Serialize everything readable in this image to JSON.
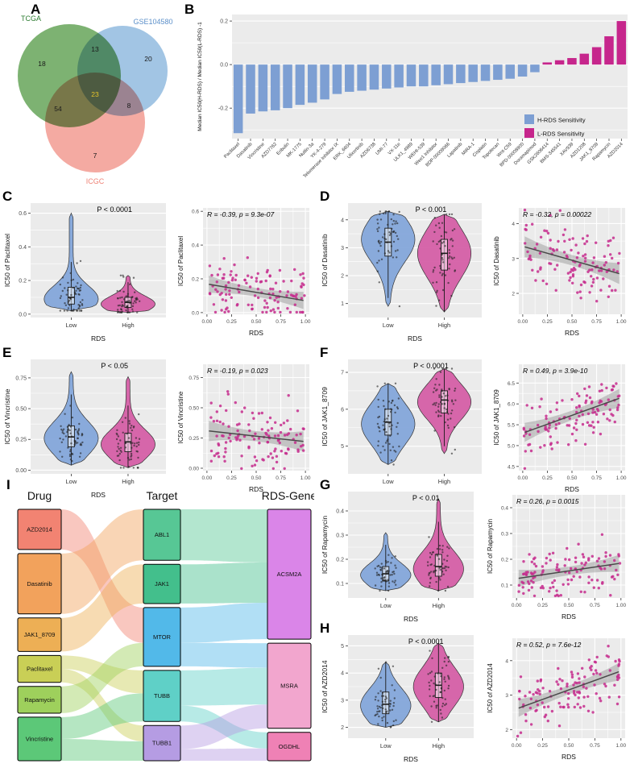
{
  "chart_data": [
    {
      "type": "venn",
      "panel": "A",
      "sets": [
        {
          "name": "TCGA",
          "color": "#66A559",
          "label_color": "#2e7d32"
        },
        {
          "name": "GSE104580",
          "color": "#92BBDF",
          "label_color": "#5b8fc9"
        },
        {
          "name": "ICGC",
          "color": "#F29B92",
          "label_color": "#ef8377"
        }
      ],
      "regions": [
        {
          "label": "TCGA only",
          "value": 18,
          "highlight": false
        },
        {
          "label": "TCGA and GSE104580",
          "value": 13,
          "highlight": false
        },
        {
          "label": "GSE104580 only",
          "value": 20,
          "highlight": false
        },
        {
          "label": "TCGA and ICGC",
          "value": 54,
          "highlight": false
        },
        {
          "label": "all three",
          "value": 23,
          "highlight": true
        },
        {
          "label": "GSE104580 and ICGC",
          "value": 8,
          "highlight": false
        },
        {
          "label": "ICGC only",
          "value": 7,
          "highlight": false
        }
      ]
    },
    {
      "type": "bar",
      "panel": "B",
      "ylabel": "Median IC50(H-RDS) / Median IC50(L-RDS) -1",
      "ylim": [
        -0.34,
        0.23
      ],
      "yticks": [
        "0.2",
        "0.0",
        "-0.2"
      ],
      "minor_ticks": [
        0.1,
        -0.1,
        -0.3
      ],
      "legend": [
        {
          "label": "H-RDS Sensitivity",
          "color": "#7D9FD3"
        },
        {
          "label": "L-RDS Sensitivity",
          "color": "#C6268C"
        }
      ],
      "categories": [
        "Paclitaxel",
        "Dasatinib",
        "Vincristine",
        "AZD7762",
        "Eribulin",
        "MK-1775",
        "Nutlin-3a",
        "YK-4-279",
        "Telomerase Inhibitor IX",
        "ERK_6604",
        "Ulixertinib",
        "AZD6738",
        "UMI-77",
        "VX-11e",
        "ULK1_4989",
        "WEHI-539",
        "Wee1 Inhibitor",
        "BDP-00009066",
        "Lapatinib",
        "MIRA-1",
        "Cisplatin",
        "Topotecan",
        "Wnt-C59",
        "BPD-00008900",
        "Doramapimod",
        "GSK2606414",
        "BMS-345541",
        "XAV939",
        "AZD1208",
        "JAK1_8709",
        "Rapamycin",
        "AZD2014"
      ],
      "values": [
        -0.315,
        -0.225,
        -0.215,
        -0.21,
        -0.2,
        -0.185,
        -0.175,
        -0.16,
        -0.135,
        -0.125,
        -0.12,
        -0.115,
        -0.11,
        -0.105,
        -0.1,
        -0.1,
        -0.095,
        -0.09,
        -0.085,
        -0.08,
        -0.075,
        -0.07,
        -0.065,
        -0.055,
        -0.035,
        0.01,
        0.02,
        0.03,
        0.05,
        0.08,
        0.13,
        0.2
      ]
    },
    {
      "type": "violin+scatter",
      "panel": "C",
      "drug": "Paclitaxel",
      "p_label": "P < 0.0001",
      "ylabel": "IC50 of Paclitaxel",
      "xlabel": "RDS",
      "violin_yticks": [
        "0.0",
        "0.2",
        "0.4",
        "0.6"
      ],
      "violin_ylim": [
        -0.02,
        0.66
      ],
      "violin_groups": [
        {
          "label": "Low",
          "color": "#84A7DA",
          "min": 0.02,
          "max": 0.6,
          "mode": 0.09,
          "q1": 0.06,
          "median": 0.1,
          "q3": 0.16,
          "spread": 0.07,
          "n": 60
        },
        {
          "label": "High",
          "color": "#D55FA6",
          "min": 0.01,
          "max": 0.23,
          "mode": 0.06,
          "q1": 0.04,
          "median": 0.07,
          "q3": 0.1,
          "spread": 0.045,
          "n": 60
        }
      ],
      "scatter": {
        "annotation": "R = -0.39, p = 9.3e-07",
        "R": -0.39,
        "p": "9.3e-07",
        "xticks": [
          "0.00",
          "0.25",
          "0.50",
          "0.75",
          "1.00"
        ],
        "yticks": [
          "0.0",
          "0.2",
          "0.4",
          "0.6"
        ],
        "ylim": [
          -0.01,
          0.62
        ],
        "n": 120,
        "line": [
          0.17,
          0.07
        ],
        "noise": 0.085
      }
    },
    {
      "type": "violin+scatter",
      "panel": "D",
      "drug": "Dasatinib",
      "p_label": "P < 0.001",
      "ylabel": "IC50 of Dasatinib",
      "xlabel": "RDS",
      "violin_yticks": [
        "1",
        "2",
        "3",
        "4"
      ],
      "violin_ylim": [
        0.5,
        4.6
      ],
      "violin_groups": [
        {
          "label": "Low",
          "color": "#84A7DA",
          "min": 0.9,
          "max": 4.3,
          "mode": 3.3,
          "q1": 2.7,
          "median": 3.2,
          "q3": 3.7,
          "spread": 0.55,
          "n": 60
        },
        {
          "label": "High",
          "color": "#D55FA6",
          "min": 0.7,
          "max": 4.2,
          "mode": 2.8,
          "q1": 2.2,
          "median": 2.8,
          "q3": 3.3,
          "spread": 0.65,
          "n": 60
        }
      ],
      "scatter": {
        "annotation": "R = -0.32, p = 0.00022",
        "R": -0.32,
        "p": "0.00022",
        "xticks": [
          "0.00",
          "0.25",
          "0.50",
          "0.75",
          "1.00"
        ],
        "yticks": [
          "2",
          "3",
          "4"
        ],
        "ylim": [
          1.4,
          4.45
        ],
        "n": 120,
        "line": [
          3.35,
          2.55
        ],
        "noise": 0.5
      }
    },
    {
      "type": "violin+scatter",
      "panel": "E",
      "drug": "Vincristine",
      "p_label": "P < 0.05",
      "ylabel": "IC50 of Vincristine",
      "xlabel": "RDS",
      "violin_yticks": [
        "0.00",
        "0.25",
        "0.50",
        "0.75"
      ],
      "violin_ylim": [
        -0.03,
        0.9
      ],
      "violin_groups": [
        {
          "label": "Low",
          "color": "#84A7DA",
          "min": 0.04,
          "max": 0.8,
          "mode": 0.26,
          "q1": 0.19,
          "median": 0.27,
          "q3": 0.36,
          "spread": 0.1,
          "n": 60
        },
        {
          "label": "High",
          "color": "#D55FA6",
          "min": 0.02,
          "max": 0.76,
          "mode": 0.21,
          "q1": 0.15,
          "median": 0.23,
          "q3": 0.3,
          "spread": 0.1,
          "n": 60
        }
      ],
      "scatter": {
        "annotation": "R = -0.19, p = 0.023",
        "R": -0.19,
        "p": "0.023",
        "xticks": [
          "0.00",
          "0.25",
          "0.50",
          "0.75",
          "1.00"
        ],
        "yticks": [
          "0.00",
          "0.25",
          "0.50",
          "0.75"
        ],
        "ylim": [
          -0.02,
          0.86
        ],
        "n": 120,
        "line": [
          0.31,
          0.22
        ],
        "noise": 0.14
      }
    },
    {
      "type": "violin+scatter",
      "panel": "F",
      "drug": "JAK1_8709",
      "p_label": "P < 0.0001",
      "ylabel": "IC50 of JAK1_8709",
      "xlabel": "RDS",
      "violin_yticks": [
        "5",
        "6",
        "7"
      ],
      "violin_ylim": [
        4.25,
        7.35
      ],
      "violin_groups": [
        {
          "label": "Low",
          "color": "#84A7DA",
          "min": 4.5,
          "max": 6.7,
          "mode": 5.6,
          "q1": 5.3,
          "median": 5.65,
          "q3": 6.0,
          "spread": 0.45,
          "n": 60
        },
        {
          "label": "High",
          "color": "#D55FA6",
          "min": 4.8,
          "max": 7.1,
          "mode": 6.2,
          "q1": 5.9,
          "median": 6.25,
          "q3": 6.5,
          "spread": 0.4,
          "n": 60
        }
      ],
      "scatter": {
        "annotation": "R = 0.49, p = 3.9e-10",
        "R": 0.49,
        "p": "3.9e-10",
        "xticks": [
          "0.00",
          "0.25",
          "0.50",
          "0.75",
          "1.00"
        ],
        "yticks": [
          "4.5",
          "5.0",
          "5.5",
          "6.0",
          "6.5"
        ],
        "ylim": [
          4.4,
          6.95
        ],
        "n": 120,
        "line": [
          5.3,
          6.15
        ],
        "noise": 0.38
      }
    },
    {
      "type": "violin+scatter",
      "panel": "G",
      "drug": "Rapamycin",
      "p_label": "P < 0.01",
      "ylabel": "IC50 of Rapamycin",
      "xlabel": "RDS",
      "violin_yticks": [
        "0.1",
        "0.2",
        "0.3",
        "0.4"
      ],
      "violin_ylim": [
        0.04,
        0.48
      ],
      "violin_groups": [
        {
          "label": "Low",
          "color": "#84A7DA",
          "min": 0.07,
          "max": 0.31,
          "mode": 0.135,
          "q1": 0.11,
          "median": 0.14,
          "q3": 0.17,
          "spread": 0.035,
          "n": 55
        },
        {
          "label": "High",
          "color": "#D55FA6",
          "min": 0.07,
          "max": 0.45,
          "mode": 0.16,
          "q1": 0.13,
          "median": 0.17,
          "q3": 0.22,
          "spread": 0.05,
          "n": 55
        }
      ],
      "scatter": {
        "annotation": "R = 0.26, p = 0.0015",
        "R": 0.26,
        "p": "0.0015",
        "xticks": [
          "0.00",
          "0.25",
          "0.50",
          "0.75",
          "1.00"
        ],
        "yticks": [
          "0.1",
          "0.2",
          "0.3",
          "0.4"
        ],
        "ylim": [
          0.05,
          0.45
        ],
        "n": 120,
        "line": [
          0.125,
          0.185
        ],
        "noise": 0.055
      }
    },
    {
      "type": "violin+scatter",
      "panel": "H",
      "drug": "AZD2014",
      "p_label": "P < 0.0001",
      "ylabel": "IC50 of AZD2014",
      "xlabel": "RDS",
      "violin_yticks": [
        "2",
        "3",
        "4",
        "5"
      ],
      "violin_ylim": [
        1.6,
        5.4
      ],
      "violin_groups": [
        {
          "label": "Low",
          "color": "#84A7DA",
          "min": 2.0,
          "max": 4.4,
          "mode": 2.8,
          "q1": 2.5,
          "median": 2.85,
          "q3": 3.3,
          "spread": 0.45,
          "n": 55
        },
        {
          "label": "High",
          "color": "#D55FA6",
          "min": 2.2,
          "max": 5.1,
          "mode": 3.5,
          "q1": 3.1,
          "median": 3.55,
          "q3": 4.0,
          "spread": 0.5,
          "n": 55
        }
      ],
      "scatter": {
        "annotation": "R = 0.52, p = 7.6e-12",
        "R": 0.52,
        "p": "7.6e-12",
        "xticks": [
          "0.00",
          "0.25",
          "0.50",
          "0.75",
          "1.00"
        ],
        "yticks": [
          "2",
          "3",
          "4"
        ],
        "ylim": [
          1.75,
          4.65
        ],
        "n": 120,
        "line": [
          2.6,
          3.7
        ],
        "noise": 0.42
      }
    },
    {
      "type": "sankey",
      "panel": "I",
      "column_titles": [
        "Drug",
        "Target",
        "RDS-Gene"
      ],
      "columns": [
        {
          "name": "Drug",
          "nodes": [
            {
              "name": "AZD2014",
              "color": "#F28372",
              "w": 1.2
            },
            {
              "name": "Dasatinib",
              "color": "#F2A25C",
              "w": 1.8
            },
            {
              "name": "JAK1_8709",
              "color": "#EDAF55",
              "w": 1.0
            },
            {
              "name": "Paclitaxel",
              "color": "#C9CF56",
              "w": 0.8
            },
            {
              "name": "Rapamycin",
              "color": "#9ED05C",
              "w": 0.8
            },
            {
              "name": "Vincristine",
              "color": "#5CC878",
              "w": 1.3
            }
          ]
        },
        {
          "name": "Target",
          "nodes": [
            {
              "name": "ABL1",
              "color": "#57C795",
              "w": 1.3
            },
            {
              "name": "JAK1",
              "color": "#43BF8C",
              "w": 1.0
            },
            {
              "name": "MTOR",
              "color": "#52B9E9",
              "w": 1.5
            },
            {
              "name": "TUBB",
              "color": "#5FD0C7",
              "w": 1.3
            },
            {
              "name": "TUBB1",
              "color": "#B59CE3",
              "w": 0.9
            }
          ]
        },
        {
          "name": "RDS-Gene",
          "nodes": [
            {
              "name": "ACSM2A",
              "color": "#DA85E8",
              "w": 3.2
            },
            {
              "name": "MSRA",
              "color": "#F2A6CE",
              "w": 2.1
            },
            {
              "name": "OGDHL",
              "color": "#EF81B5",
              "w": 0.7
            }
          ]
        }
      ],
      "links": [
        {
          "from": "AZD2014",
          "to": "MTOR",
          "fs": 1.0,
          "fd": 0.6
        },
        {
          "from": "Dasatinib",
          "to": "ABL1",
          "fs": 1.0,
          "fd": 1.0
        },
        {
          "from": "JAK1_8709",
          "to": "JAK1",
          "fs": 1.0,
          "fd": 1.0
        },
        {
          "from": "Paclitaxel",
          "to": "TUBB",
          "fs": 0.5,
          "fd": 0.45
        },
        {
          "from": "Paclitaxel",
          "to": "TUBB1",
          "fs": 0.5,
          "fd": 0.45
        },
        {
          "from": "Rapamycin",
          "to": "MTOR",
          "fs": 1.0,
          "fd": 0.4
        },
        {
          "from": "Vincristine",
          "to": "TUBB",
          "fs": 0.5,
          "fd": 0.55
        },
        {
          "from": "Vincristine",
          "to": "TUBB1",
          "fs": 0.5,
          "fd": 0.55
        },
        {
          "from": "ABL1",
          "to": "ACSM2A",
          "fs": 1.0,
          "fd": 0.41
        },
        {
          "from": "JAK1",
          "to": "ACSM2A",
          "fs": 1.0,
          "fd": 0.31
        },
        {
          "from": "MTOR",
          "to": "ACSM2A",
          "fs": 0.6,
          "fd": 0.28
        },
        {
          "from": "MTOR",
          "to": "MSRA",
          "fs": 0.4,
          "fd": 0.29
        },
        {
          "from": "TUBB",
          "to": "MSRA",
          "fs": 0.69,
          "fd": 0.43
        },
        {
          "from": "TUBB",
          "to": "OGDHL",
          "fs": 0.31,
          "fd": 0.57
        },
        {
          "from": "TUBB1",
          "to": "MSRA",
          "fs": 0.67,
          "fd": 0.28
        },
        {
          "from": "TUBB1",
          "to": "OGDHL",
          "fs": 0.33,
          "fd": 0.43
        }
      ]
    }
  ]
}
